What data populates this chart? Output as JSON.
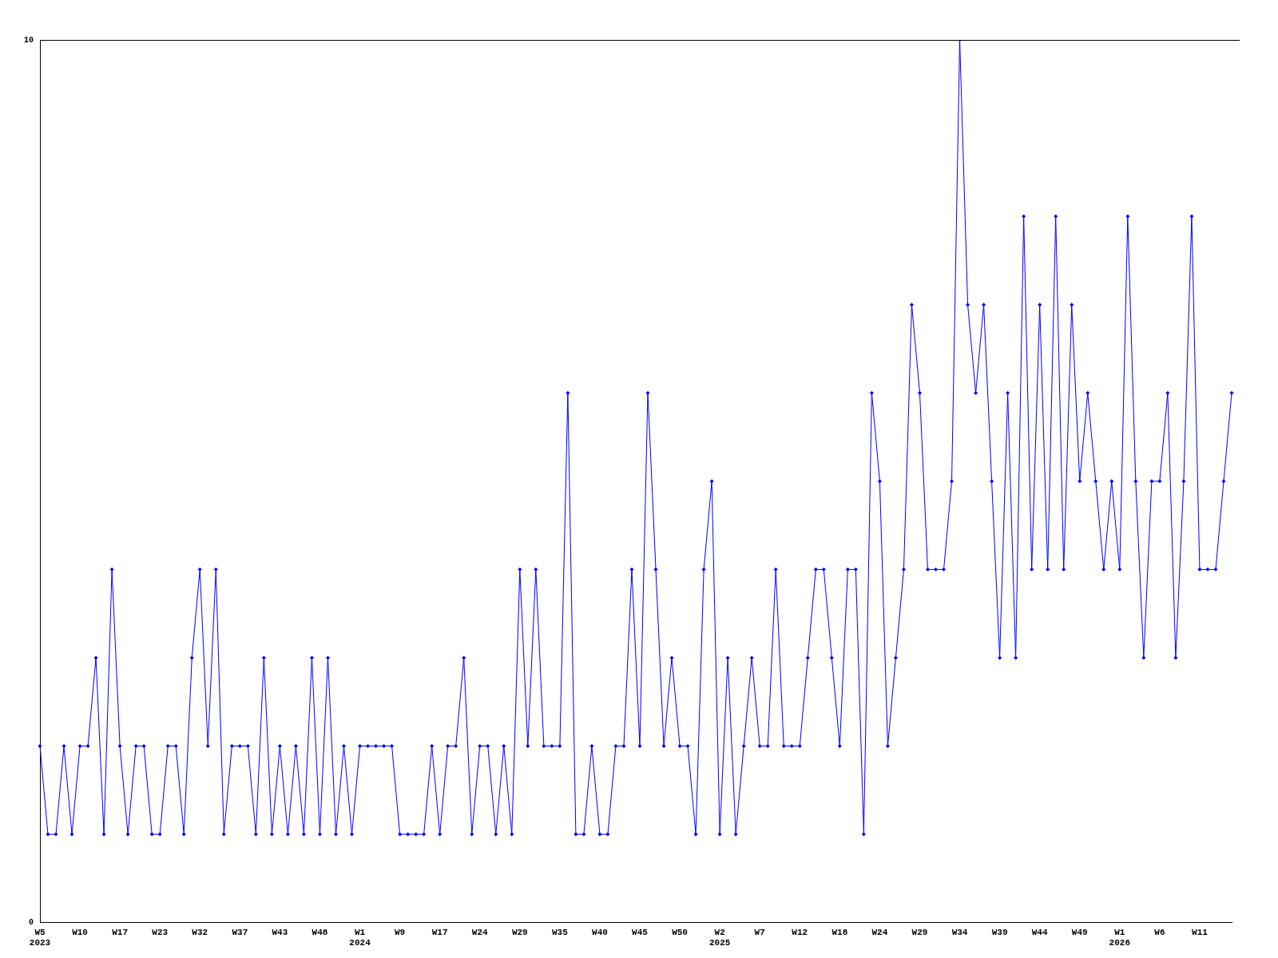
{
  "chart_data": {
    "type": "line",
    "categories": [
      "W5\n2023",
      null,
      null,
      null,
      null,
      "W10",
      null,
      null,
      null,
      null,
      "W17",
      null,
      null,
      null,
      null,
      "W23",
      null,
      null,
      null,
      null,
      "W32",
      null,
      null,
      null,
      null,
      "W37",
      null,
      null,
      null,
      null,
      "W43",
      null,
      null,
      null,
      null,
      "W48",
      null,
      null,
      null,
      null,
      "W1\n2024",
      null,
      null,
      null,
      null,
      "W9",
      null,
      null,
      null,
      null,
      "W17",
      null,
      null,
      null,
      null,
      "W24",
      null,
      null,
      null,
      null,
      "W29",
      null,
      null,
      null,
      null,
      "W35",
      null,
      null,
      null,
      null,
      "W40",
      null,
      null,
      null,
      null,
      "W45",
      null,
      null,
      null,
      null,
      "W50",
      null,
      null,
      null,
      null,
      "W2\n2025",
      null,
      null,
      null,
      null,
      "W7",
      null,
      null,
      null,
      null,
      "W12",
      null,
      null,
      null,
      null,
      "W18",
      null,
      null,
      null,
      null,
      "W24",
      null,
      null,
      null,
      null,
      "W29",
      null,
      null,
      null,
      null,
      "W34",
      null,
      null,
      null,
      null,
      "W39",
      null,
      null,
      null,
      null,
      "W44",
      null,
      null,
      null,
      null,
      "W49",
      null,
      null,
      null,
      null,
      "W1\n2026",
      null,
      null,
      null,
      null,
      "W6",
      null,
      null,
      null,
      null,
      "W11",
      null,
      null,
      null,
      null
    ],
    "series": [
      {
        "color": "#0000ff",
        "values": [
          2,
          1,
          1,
          2,
          1,
          2,
          2,
          3,
          1,
          4,
          2,
          1,
          2,
          2,
          1,
          1,
          2,
          2,
          1,
          3,
          4,
          2,
          4,
          1,
          2,
          2,
          2,
          1,
          3,
          1,
          2,
          1,
          2,
          1,
          3,
          1,
          3,
          1,
          2,
          1,
          2,
          2,
          2,
          2,
          2,
          1,
          1,
          1,
          1,
          2,
          1,
          2,
          2,
          3,
          1,
          2,
          2,
          1,
          2,
          1,
          4,
          2,
          4,
          2,
          2,
          2,
          6,
          1,
          1,
          2,
          1,
          1,
          2,
          2,
          4,
          2,
          6,
          4,
          2,
          3,
          2,
          2,
          1,
          4,
          5,
          1,
          3,
          1,
          2,
          3,
          2,
          2,
          4,
          2,
          2,
          2,
          3,
          4,
          4,
          3,
          2,
          4,
          4,
          1,
          6,
          5,
          2,
          3,
          4,
          7,
          6,
          4,
          4,
          4,
          5,
          10,
          7,
          6,
          7,
          5,
          3,
          6,
          3,
          8,
          4,
          7,
          4,
          8,
          4,
          7,
          5,
          6,
          5,
          4,
          5,
          4,
          8,
          5,
          3,
          5,
          5,
          6,
          3,
          5,
          8,
          4,
          4,
          4,
          5,
          6
        ]
      }
    ],
    "ylim": [
      0,
      10
    ],
    "yticks": [
      0,
      10
    ],
    "marker": "diamond",
    "line_style": "solid",
    "legend": false
  }
}
